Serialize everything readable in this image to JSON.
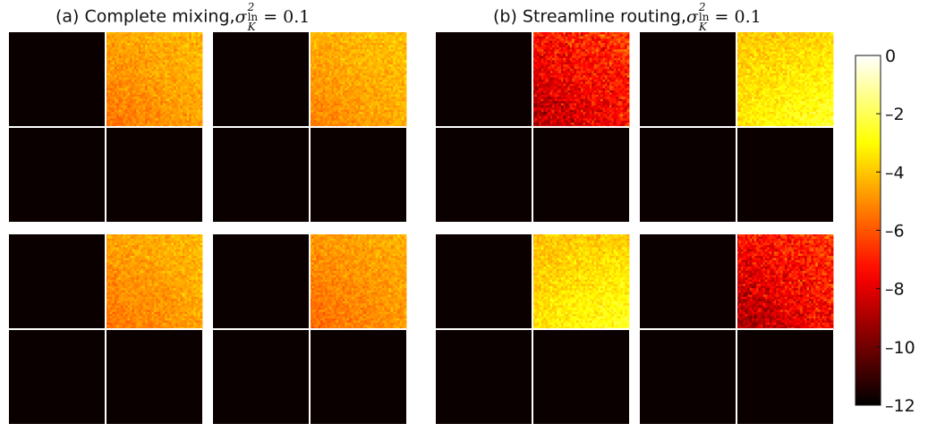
{
  "chart_data": {
    "type": "heatmap",
    "colormap": "hot",
    "panels": [
      {
        "title_text": "(a) Complete mixing,",
        "title_math": {
          "symbol": "σ",
          "superscript": "2",
          "subscript": "ln",
          "subscript_var": "K",
          "rhs": "= 0.1"
        },
        "cells": [
          {
            "row": 0,
            "col": 0,
            "active_quadrant": "top-right",
            "mean_log_value": -4.6,
            "noise": 0.6,
            "corner_bias": "bottom-left-darker"
          },
          {
            "row": 0,
            "col": 1,
            "active_quadrant": "top-right",
            "mean_log_value": -4.4,
            "noise": 0.6,
            "corner_bias": "bottom-left-darker"
          },
          {
            "row": 1,
            "col": 0,
            "active_quadrant": "top-right",
            "mean_log_value": -4.6,
            "noise": 0.6,
            "corner_bias": "bottom-left-darker"
          },
          {
            "row": 1,
            "col": 1,
            "active_quadrant": "top-right",
            "mean_log_value": -4.8,
            "noise": 0.6,
            "corner_bias": "bottom-left-darker"
          }
        ]
      },
      {
        "title_text": "(b) Streamline routing,",
        "title_math": {
          "symbol": "σ",
          "superscript": "2",
          "subscript": "ln",
          "subscript_var": "K",
          "rhs": "= 0.1"
        },
        "cells": [
          {
            "row": 0,
            "col": 0,
            "active_quadrant": "top-right",
            "mean_log_value": -7.2,
            "noise": 1.3,
            "corner_bias": "bottom-left-darker"
          },
          {
            "row": 0,
            "col": 1,
            "active_quadrant": "top-right",
            "mean_log_value": -3.4,
            "noise": 0.7,
            "corner_bias": "bottom-right-lighter"
          },
          {
            "row": 1,
            "col": 0,
            "active_quadrant": "top-right",
            "mean_log_value": -3.5,
            "noise": 0.7,
            "corner_bias": "bottom-right-lighter"
          },
          {
            "row": 1,
            "col": 1,
            "active_quadrant": "top-right",
            "mean_log_value": -7.3,
            "noise": 1.3,
            "corner_bias": "bottom-left-darker"
          }
        ]
      }
    ],
    "background_log_value": -12,
    "colorbar": {
      "vmin": -12,
      "vmax": 0,
      "ticks": [
        0,
        -2,
        -4,
        -6,
        -8,
        -10,
        -12
      ],
      "tick_labels": [
        "0",
        "–2",
        "–4",
        "–6",
        "–8",
        "–10",
        "–12"
      ]
    },
    "grid": false,
    "colors": {
      "quadrant_divider": "#ffffff",
      "background_cell": "#0b0000"
    }
  }
}
